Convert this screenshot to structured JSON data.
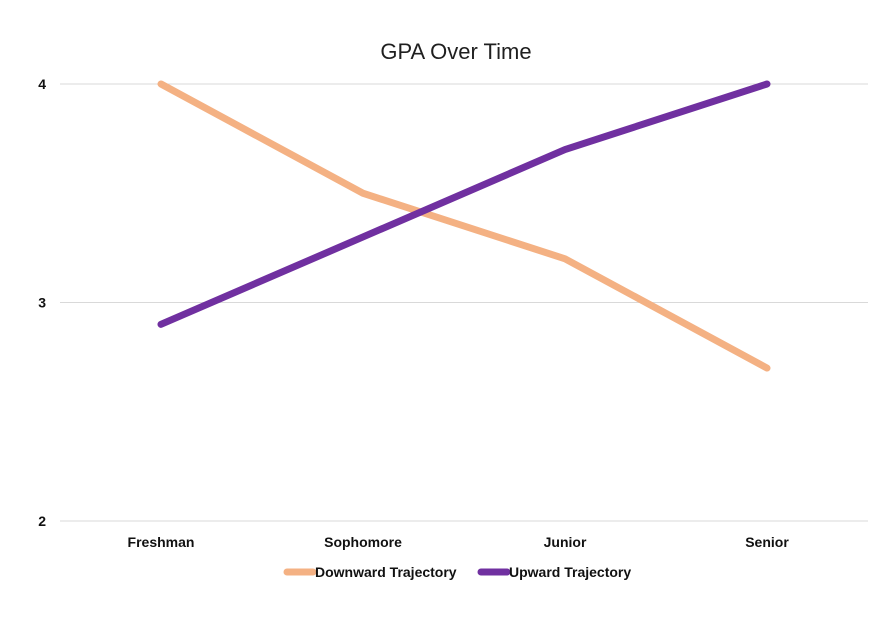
{
  "chart_data": {
    "type": "line",
    "title": "GPA Over Time",
    "xlabel": "",
    "ylabel": "",
    "categories": [
      "Freshman",
      "Sophomore",
      "Junior",
      "Senior"
    ],
    "ylim": [
      2,
      4
    ],
    "yticks": [
      2,
      3,
      4
    ],
    "grid": true,
    "legend_position": "bottom",
    "series": [
      {
        "name": "Downward Trajectory",
        "values": [
          4.0,
          3.5,
          3.2,
          2.7
        ],
        "color": "#F4B183"
      },
      {
        "name": "Upward Trajectory",
        "values": [
          2.9,
          3.3,
          3.7,
          4.0
        ],
        "color": "#7030A0"
      }
    ]
  }
}
